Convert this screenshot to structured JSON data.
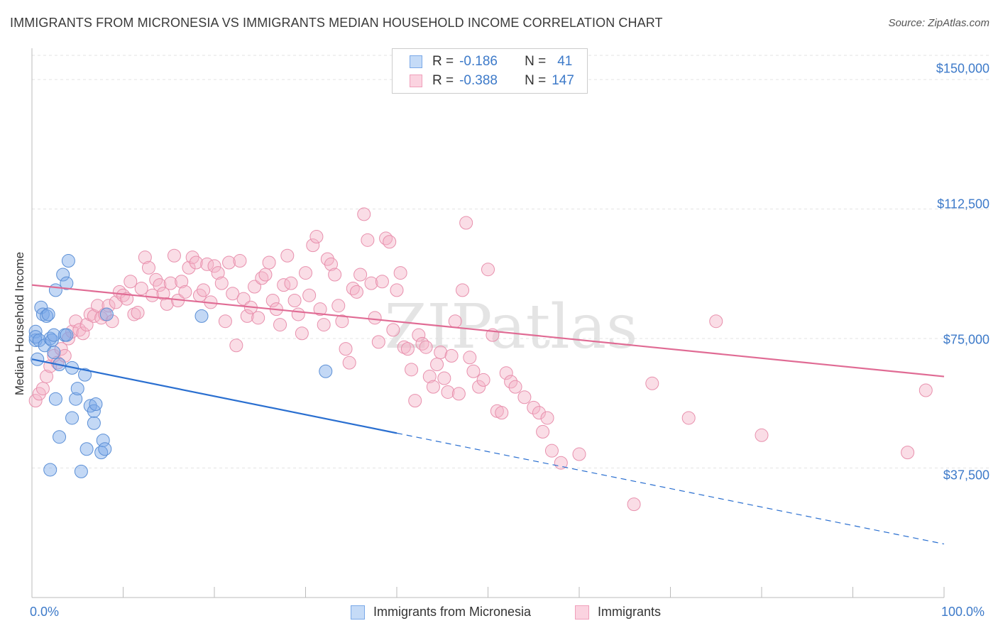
{
  "header": {
    "title": "IMMIGRANTS FROM MICRONESIA VS IMMIGRANTS MEDIAN HOUSEHOLD INCOME CORRELATION CHART",
    "source": "Source: ZipAtlas.com"
  },
  "watermark": "ZIPatlas",
  "legend_stats": {
    "r_label": "R =",
    "n_label": "N =",
    "rows": [
      {
        "r": "-0.186",
        "n": "41",
        "color": "#7aa9e8"
      },
      {
        "r": "-0.388",
        "n": "147",
        "color": "#f0a0bb"
      }
    ]
  },
  "chart_data": {
    "type": "scatter",
    "title": "IMMIGRANTS FROM MICRONESIA VS IMMIGRANTS MEDIAN HOUSEHOLD INCOME CORRELATION CHART",
    "xlabel": "",
    "ylabel": "Median Household Income",
    "xlim": [
      0,
      100
    ],
    "ylim": [
      0,
      157000
    ],
    "x_tick_labels": [
      "0.0%",
      "100.0%"
    ],
    "y_ticks": [
      37500,
      75000,
      112500,
      150000
    ],
    "y_tick_labels": [
      "$37,500",
      "$75,000",
      "$112,500",
      "$150,000"
    ],
    "grid": true,
    "legend_position": "bottom",
    "series": [
      {
        "name": "Immigrants from Micronesia",
        "color": "#7aa9e8",
        "stroke": "#5b8fd6",
        "trend": {
          "color": "#2a6fd0",
          "solid_to_x": 40,
          "points": [
            [
              0,
              69000
            ],
            [
              100,
              15500
            ]
          ]
        },
        "points": [
          [
            0.4,
            77000
          ],
          [
            0.4,
            74500
          ],
          [
            0.4,
            75500
          ],
          [
            0.6,
            69000
          ],
          [
            0.8,
            74500
          ],
          [
            1.0,
            84000
          ],
          [
            1.2,
            82000
          ],
          [
            1.4,
            73000
          ],
          [
            1.6,
            81500
          ],
          [
            1.8,
            82000
          ],
          [
            2.0,
            37000
          ],
          [
            2.0,
            75000
          ],
          [
            2.2,
            74500
          ],
          [
            2.4,
            76000
          ],
          [
            2.4,
            71000
          ],
          [
            2.6,
            89000
          ],
          [
            2.6,
            57500
          ],
          [
            3.0,
            46500
          ],
          [
            3.0,
            67500
          ],
          [
            3.4,
            93500
          ],
          [
            3.6,
            76000
          ],
          [
            3.8,
            76000
          ],
          [
            3.8,
            91000
          ],
          [
            4.0,
            97500
          ],
          [
            4.4,
            66500
          ],
          [
            4.4,
            52000
          ],
          [
            4.8,
            57500
          ],
          [
            5.0,
            60500
          ],
          [
            5.4,
            36500
          ],
          [
            5.8,
            64500
          ],
          [
            6.0,
            43000
          ],
          [
            6.4,
            55500
          ],
          [
            6.8,
            50500
          ],
          [
            6.8,
            54000
          ],
          [
            7.0,
            56000
          ],
          [
            7.6,
            42000
          ],
          [
            7.8,
            45500
          ],
          [
            8.0,
            43000
          ],
          [
            8.2,
            82000
          ],
          [
            18.6,
            81500
          ],
          [
            32.2,
            65500
          ]
        ]
      },
      {
        "name": "Immigrants",
        "color": "#f5b3c8",
        "stroke": "#e890ad",
        "trend": {
          "color": "#e06b94",
          "points": [
            [
              0,
              90500
            ],
            [
              100,
              64000
            ]
          ]
        },
        "points": [
          [
            0.4,
            57000
          ],
          [
            0.8,
            59000
          ],
          [
            1.2,
            60500
          ],
          [
            1.6,
            64000
          ],
          [
            2.0,
            67000
          ],
          [
            2.4,
            70000
          ],
          [
            2.8,
            68000
          ],
          [
            3.2,
            72000
          ],
          [
            3.6,
            70000
          ],
          [
            4.0,
            75000
          ],
          [
            4.4,
            77000
          ],
          [
            4.8,
            80000
          ],
          [
            5.2,
            77500
          ],
          [
            5.6,
            76500
          ],
          [
            6.0,
            79000
          ],
          [
            6.4,
            82000
          ],
          [
            6.8,
            81500
          ],
          [
            7.2,
            84500
          ],
          [
            7.6,
            81000
          ],
          [
            8.0,
            82000
          ],
          [
            8.4,
            84500
          ],
          [
            8.8,
            80000
          ],
          [
            9.2,
            85500
          ],
          [
            9.6,
            88500
          ],
          [
            10.0,
            87500
          ],
          [
            10.4,
            86500
          ],
          [
            10.8,
            91500
          ],
          [
            11.2,
            82000
          ],
          [
            11.6,
            82500
          ],
          [
            12.0,
            89500
          ],
          [
            12.4,
            98500
          ],
          [
            12.8,
            95500
          ],
          [
            13.2,
            87500
          ],
          [
            13.6,
            92000
          ],
          [
            14.0,
            90500
          ],
          [
            14.4,
            88000
          ],
          [
            14.8,
            85000
          ],
          [
            15.2,
            91000
          ],
          [
            15.6,
            99000
          ],
          [
            16.0,
            86000
          ],
          [
            16.4,
            91500
          ],
          [
            16.8,
            88500
          ],
          [
            17.2,
            95500
          ],
          [
            17.6,
            98500
          ],
          [
            18.0,
            97000
          ],
          [
            18.4,
            87500
          ],
          [
            18.8,
            89000
          ],
          [
            19.2,
            96500
          ],
          [
            19.6,
            85500
          ],
          [
            20.0,
            96000
          ],
          [
            20.4,
            94000
          ],
          [
            20.8,
            91000
          ],
          [
            21.2,
            80000
          ],
          [
            21.6,
            97000
          ],
          [
            22.0,
            88000
          ],
          [
            22.4,
            73000
          ],
          [
            22.8,
            97500
          ],
          [
            23.2,
            86500
          ],
          [
            23.6,
            81500
          ],
          [
            24.0,
            84000
          ],
          [
            24.4,
            90000
          ],
          [
            24.8,
            81000
          ],
          [
            25.2,
            92500
          ],
          [
            25.6,
            93500
          ],
          [
            26.0,
            97000
          ],
          [
            26.4,
            86000
          ],
          [
            26.8,
            83500
          ],
          [
            27.2,
            79000
          ],
          [
            27.6,
            90500
          ],
          [
            28.0,
            99000
          ],
          [
            28.4,
            91000
          ],
          [
            28.8,
            86000
          ],
          [
            29.2,
            82000
          ],
          [
            29.6,
            76500
          ],
          [
            30.0,
            94000
          ],
          [
            30.4,
            87500
          ],
          [
            30.8,
            102000
          ],
          [
            31.2,
            104500
          ],
          [
            31.6,
            83500
          ],
          [
            32.0,
            79000
          ],
          [
            32.4,
            98000
          ],
          [
            32.8,
            96500
          ],
          [
            33.2,
            93500
          ],
          [
            33.6,
            84500
          ],
          [
            34.0,
            80000
          ],
          [
            34.4,
            72000
          ],
          [
            34.8,
            68000
          ],
          [
            35.2,
            89500
          ],
          [
            35.6,
            88500
          ],
          [
            36.0,
            93500
          ],
          [
            36.4,
            111000
          ],
          [
            36.8,
            103500
          ],
          [
            37.2,
            91000
          ],
          [
            37.6,
            81000
          ],
          [
            38.0,
            74000
          ],
          [
            38.4,
            91500
          ],
          [
            38.8,
            104000
          ],
          [
            39.2,
            103000
          ],
          [
            39.6,
            77500
          ],
          [
            40.0,
            89000
          ],
          [
            40.4,
            94000
          ],
          [
            40.8,
            72500
          ],
          [
            41.2,
            72000
          ],
          [
            41.6,
            66000
          ],
          [
            42.0,
            57000
          ],
          [
            42.4,
            76000
          ],
          [
            42.8,
            73500
          ],
          [
            43.2,
            72500
          ],
          [
            43.6,
            64000
          ],
          [
            44.0,
            61000
          ],
          [
            44.4,
            67500
          ],
          [
            44.8,
            71000
          ],
          [
            45.2,
            63500
          ],
          [
            45.6,
            59500
          ],
          [
            46.0,
            70000
          ],
          [
            46.4,
            80000
          ],
          [
            46.8,
            59000
          ],
          [
            47.2,
            89000
          ],
          [
            47.6,
            108500
          ],
          [
            48.0,
            69500
          ],
          [
            48.4,
            65500
          ],
          [
            49.0,
            61000
          ],
          [
            49.5,
            63000
          ],
          [
            50.0,
            95000
          ],
          [
            50.5,
            76000
          ],
          [
            51.0,
            54000
          ],
          [
            51.5,
            53500
          ],
          [
            52.0,
            65000
          ],
          [
            52.5,
            62500
          ],
          [
            53.0,
            61000
          ],
          [
            54.0,
            58000
          ],
          [
            55.0,
            55000
          ],
          [
            55.6,
            53500
          ],
          [
            56.0,
            48000
          ],
          [
            56.5,
            52000
          ],
          [
            57.0,
            42500
          ],
          [
            58.0,
            39000
          ],
          [
            60.0,
            41500
          ],
          [
            66.0,
            27000
          ],
          [
            68.0,
            62000
          ],
          [
            72.0,
            52000
          ],
          [
            75.0,
            80000
          ],
          [
            80.0,
            47000
          ],
          [
            96.0,
            42000
          ],
          [
            98.0,
            60000
          ]
        ]
      }
    ]
  }
}
